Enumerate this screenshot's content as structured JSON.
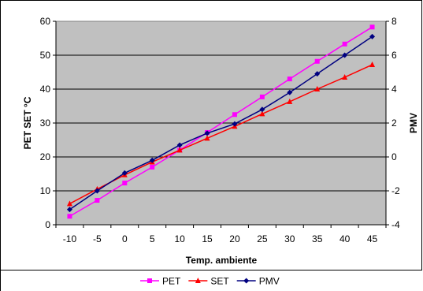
{
  "chart_data": {
    "type": "line",
    "title": "",
    "xlabel": "Temp. ambiente",
    "ylabel": "PET SET °C",
    "y2label": "PMV",
    "x": [
      -10,
      -5,
      0,
      5,
      10,
      15,
      20,
      25,
      30,
      35,
      40,
      45
    ],
    "x_tick_labels": [
      "-10",
      "-5",
      "0",
      "5",
      "10",
      "15",
      "20",
      "25",
      "30",
      "35",
      "40",
      "45"
    ],
    "ylim": [
      0,
      60
    ],
    "y_ticks": [
      "0",
      "10",
      "20",
      "30",
      "40",
      "50",
      "60"
    ],
    "y2lim": [
      -4,
      8
    ],
    "y2_ticks": [
      "-4",
      "-2",
      "0",
      "2",
      "4",
      "6",
      "8"
    ],
    "plot_background": "#c0c0c0",
    "grid": "horizontal",
    "legend_position": "bottom",
    "series": [
      {
        "name": "PET",
        "axis": "left",
        "color": "#ff00ff",
        "marker": "square",
        "values": [
          2.5,
          7.2,
          12.3,
          17.0,
          22.0,
          27.2,
          32.5,
          37.7,
          43.0,
          48.2,
          53.3,
          58.3
        ]
      },
      {
        "name": "SET",
        "axis": "left",
        "color": "#ff0000",
        "marker": "triangle",
        "values": [
          6.2,
          10.5,
          14.7,
          18.5,
          22.0,
          25.5,
          29.0,
          32.7,
          36.3,
          40.0,
          43.5,
          47.2
        ]
      },
      {
        "name": "PMV",
        "axis": "right",
        "color": "#000080",
        "marker": "diamond",
        "values": [
          -3.1,
          -2.0,
          -0.95,
          -0.2,
          0.7,
          1.4,
          1.95,
          2.8,
          3.8,
          4.9,
          6.0,
          7.1
        ]
      }
    ]
  }
}
